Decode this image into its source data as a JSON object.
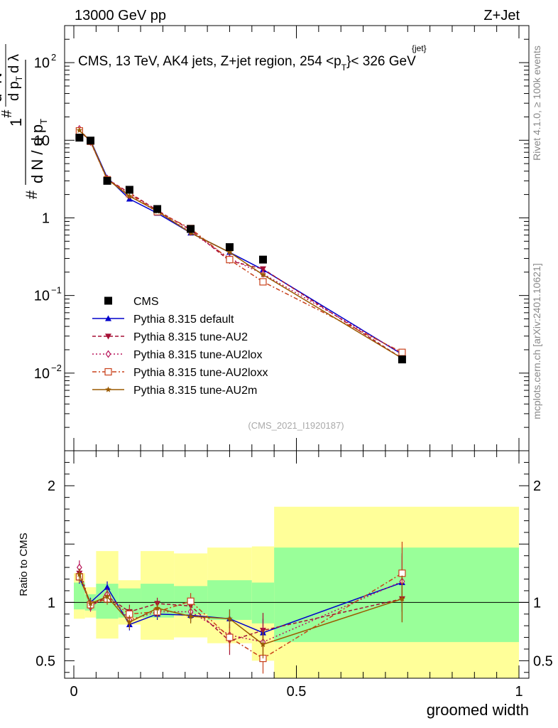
{
  "header": {
    "left": "13000 GeV pp",
    "right": "Z+Jet"
  },
  "side": {
    "rivet": "Rivet 4.1.0, ≥ 100k events",
    "mcplots": "mcplots.cern.ch [arXiv:2401.10621]"
  },
  "chart_data": [
    {
      "type": "line",
      "panel": "main",
      "title": "CMS, 13 TeV, AK4 jets, Z+jet region, 254 <p",
      "title_sup": "{jet}",
      "title_sub": "T",
      "title_tail": "}< 326 GeV",
      "ylabel_lines": [
        "1",
        "d N / d p",
        "T",
        "#",
        "d",
        "N",
        "d p",
        "T",
        "d λ",
        "#",
        "2"
      ],
      "yscale": "log",
      "ylim": [
        0.001,
        300
      ],
      "xlim": [
        -0.005,
        1.0
      ],
      "x": [
        0.0125,
        0.0375,
        0.075,
        0.125,
        0.1875,
        0.2625,
        0.35,
        0.425,
        0.7375
      ],
      "watermark": "(CMS_2021_I1920187)",
      "yticks": [
        {
          "value": 0.01,
          "base": "10",
          "exp": "−2"
        },
        {
          "value": 0.1,
          "base": "10",
          "exp": "−1"
        },
        {
          "value": 1,
          "base": "1",
          "exp": ""
        },
        {
          "value": 10,
          "base": "10",
          "exp": ""
        },
        {
          "value": 100,
          "base": "10",
          "exp": "2"
        }
      ],
      "series": [
        {
          "name": "CMS",
          "color": "#000000",
          "marker": "square",
          "dash": "none",
          "values": [
            10.8,
            9.9,
            3.0,
            2.3,
            1.3,
            0.72,
            0.42,
            0.29,
            0.015
          ]
        },
        {
          "name": "Pythia 8.315 default",
          "color": "#0000cc",
          "marker": "triangle-up",
          "dash": "none",
          "values": [
            13.0,
            10.0,
            3.3,
            1.75,
            1.15,
            0.64,
            0.36,
            0.215,
            0.0175
          ]
        },
        {
          "name": "Pythia 8.315 tune-AU2",
          "color": "#a50f35",
          "marker": "triangle-down",
          "dash": "5,3",
          "values": [
            13.5,
            9.6,
            3.15,
            2.1,
            1.25,
            0.7,
            0.28,
            0.22,
            0.0155
          ]
        },
        {
          "name": "Pythia 8.315 tune-AU2lox",
          "color": "#b8155a",
          "marker": "diamond-open",
          "dash": "2,3",
          "values": [
            14.0,
            9.5,
            3.2,
            1.95,
            1.2,
            0.66,
            0.3,
            0.19,
            0.0178
          ]
        },
        {
          "name": "Pythia 8.315 tune-AU2loxx",
          "color": "#c8401a",
          "marker": "square-open",
          "dash": "6,3,2,3",
          "values": [
            13.2,
            9.7,
            3.1,
            2.05,
            1.2,
            0.73,
            0.29,
            0.15,
            0.0185
          ]
        },
        {
          "name": "Pythia 8.315 tune-AU2m",
          "color": "#9a5a00",
          "marker": "star",
          "dash": "none",
          "values": [
            13.4,
            9.8,
            3.15,
            1.9,
            1.22,
            0.64,
            0.36,
            0.185,
            0.0155
          ]
        }
      ]
    },
    {
      "type": "line",
      "panel": "ratio",
      "xlabel": "groomed width",
      "ylabel": "Ratio to CMS",
      "ylim": [
        0.35,
        2.3
      ],
      "xlim": [
        -0.005,
        1.0
      ],
      "xticks": [
        {
          "value": 0,
          "label": "0"
        },
        {
          "value": 0.5,
          "label": "0.5"
        },
        {
          "value": 1,
          "label": "1"
        }
      ],
      "yticks": [
        {
          "value": 0.5,
          "label": "0.5"
        },
        {
          "value": 1,
          "label": "1"
        },
        {
          "value": 1.5,
          "label": ""
        },
        {
          "value": 2,
          "label": "2"
        }
      ],
      "bands": [
        {
          "x0": 0.0,
          "x1": 0.025,
          "green": [
            0.94,
            1.17
          ],
          "yellow": [
            0.86,
            1.25
          ]
        },
        {
          "x0": 0.025,
          "x1": 0.05,
          "green": [
            0.93,
            1.07
          ],
          "yellow": [
            0.87,
            1.13
          ]
        },
        {
          "x0": 0.05,
          "x1": 0.1,
          "green": [
            0.86,
            1.16
          ],
          "yellow": [
            0.69,
            1.44
          ]
        },
        {
          "x0": 0.1,
          "x1": 0.15,
          "green": [
            0.87,
            1.12
          ],
          "yellow": [
            0.81,
            1.19
          ]
        },
        {
          "x0": 0.15,
          "x1": 0.225,
          "green": [
            0.87,
            1.16
          ],
          "yellow": [
            0.68,
            1.44
          ]
        },
        {
          "x0": 0.225,
          "x1": 0.3,
          "green": [
            0.9,
            1.14
          ],
          "yellow": [
            0.7,
            1.42
          ]
        },
        {
          "x0": 0.3,
          "x1": 0.4,
          "green": [
            0.85,
            1.19
          ],
          "yellow": [
            0.65,
            1.47
          ]
        },
        {
          "x0": 0.4,
          "x1": 0.45,
          "green": [
            0.82,
            1.17
          ],
          "yellow": [
            0.5,
            1.48
          ]
        },
        {
          "x0": 0.45,
          "x1": 1.0,
          "green": [
            0.66,
            1.47
          ],
          "yellow": [
            0.35,
            1.82
          ]
        }
      ],
      "series": [
        {
          "name": "Pythia 8.315 default",
          "color": "#0000cc",
          "marker": "triangle-up",
          "dash": "none",
          "values": [
            1.21,
            1.0,
            1.13,
            0.81,
            0.9,
            0.89,
            0.86,
            0.74,
            1.17
          ],
          "err": [
            0.05,
            0.04,
            0.05,
            0.05,
            0.05,
            0.06,
            0.08,
            0.12,
            0.25
          ]
        },
        {
          "name": "Pythia 8.315 tune-AU2",
          "color": "#a50f35",
          "marker": "triangle-down",
          "dash": "5,3",
          "values": [
            1.25,
            0.97,
            1.05,
            0.92,
            0.99,
            0.97,
            0.67,
            0.76,
            1.03
          ],
          "err": [
            0.05,
            0.04,
            0.05,
            0.06,
            0.05,
            0.06,
            0.12,
            0.15,
            0.2
          ]
        },
        {
          "name": "Pythia 8.315 tune-AU2lox",
          "color": "#b8155a",
          "marker": "diamond-open",
          "dash": "2,3",
          "values": [
            1.3,
            0.96,
            1.07,
            0.85,
            0.92,
            0.92,
            0.72,
            0.66,
            1.18
          ],
          "err": [
            0.06,
            0.04,
            0.05,
            0.06,
            0.05,
            0.06,
            0.1,
            0.14,
            0.22
          ]
        },
        {
          "name": "Pythia 8.315 tune-AU2loxx",
          "color": "#c8401a",
          "marker": "square-open",
          "dash": "6,3,2,3",
          "values": [
            1.22,
            0.98,
            1.03,
            0.9,
            0.92,
            1.01,
            0.7,
            0.52,
            1.25
          ],
          "err": [
            0.05,
            0.04,
            0.05,
            0.06,
            0.05,
            0.07,
            0.11,
            0.13,
            0.27
          ]
        },
        {
          "name": "Pythia 8.315 tune-AU2m",
          "color": "#9a5a00",
          "marker": "star",
          "dash": "none",
          "values": [
            1.24,
            0.99,
            1.05,
            0.83,
            0.95,
            0.88,
            0.86,
            0.64,
            1.03
          ],
          "err": [
            0.05,
            0.04,
            0.05,
            0.06,
            0.05,
            0.06,
            0.08,
            0.12,
            0.2
          ]
        }
      ]
    }
  ]
}
